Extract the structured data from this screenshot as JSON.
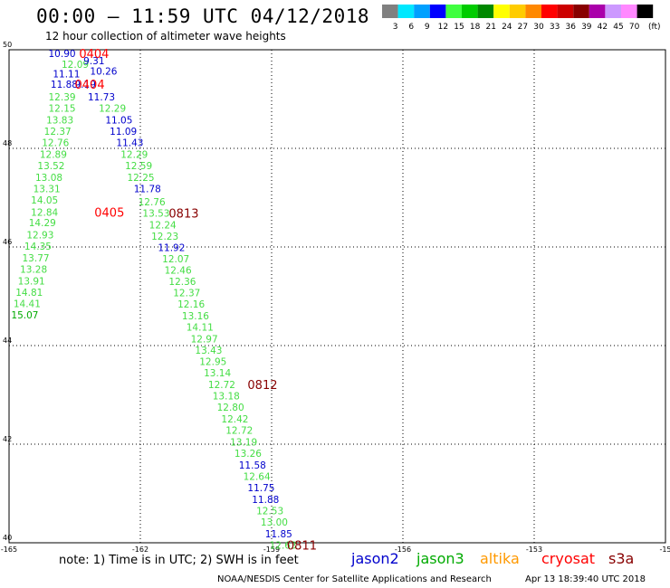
{
  "header": {
    "title": "00:00 – 11:59 UTC 04/12/2018",
    "subtitle": "12 hour collection of altimeter wave heights"
  },
  "colorbar": {
    "units": "(ft)",
    "entries": [
      {
        "label": "3",
        "color": "#808080"
      },
      {
        "label": "6",
        "color": "#00e8ff"
      },
      {
        "label": "9",
        "color": "#00a0ff"
      },
      {
        "label": "12",
        "color": "#0000ff"
      },
      {
        "label": "15",
        "color": "#40ff40"
      },
      {
        "label": "18",
        "color": "#00cc00"
      },
      {
        "label": "21",
        "color": "#008800"
      },
      {
        "label": "24",
        "color": "#ffff00"
      },
      {
        "label": "27",
        "color": "#ffcc00"
      },
      {
        "label": "30",
        "color": "#ff8800"
      },
      {
        "label": "33",
        "color": "#ff0000"
      },
      {
        "label": "36",
        "color": "#cc0000"
      },
      {
        "label": "39",
        "color": "#880000"
      },
      {
        "label": "42",
        "color": "#aa00aa"
      },
      {
        "label": "45",
        "color": "#cc99ff"
      },
      {
        "label": "70",
        "color": "#ff88ff"
      },
      {
        "label": "",
        "color": "#000000"
      }
    ]
  },
  "map": {
    "lon_ticks": [
      "-165",
      "-162",
      "-159",
      "-156",
      "-153",
      "-15"
    ],
    "lat_ticks": [
      "50",
      "48",
      "46",
      "44",
      "42",
      "40"
    ]
  },
  "observations": [
    {
      "text": "10.90",
      "color": "#0000cc",
      "x": -164.1,
      "y": 49.93
    },
    {
      "text": "12.09",
      "color": "#44dd44",
      "x": -163.8,
      "y": 49.71
    },
    {
      "text": "9.31",
      "color": "#0000cc",
      "x": -163.3,
      "y": 49.78
    },
    {
      "text": "10.26",
      "color": "#0000cc",
      "x": -163.15,
      "y": 49.57
    },
    {
      "text": "11.11",
      "color": "#0000cc",
      "x": -164.0,
      "y": 49.51
    },
    {
      "text": "11.88",
      "color": "#0000cc",
      "x": -164.05,
      "y": 49.3
    },
    {
      "text": "9.19",
      "color": "#0000cc",
      "x": -163.5,
      "y": 49.3
    },
    {
      "text": "12.39",
      "color": "#44dd44",
      "x": -164.1,
      "y": 49.05
    },
    {
      "text": "11.73",
      "color": "#0000cc",
      "x": -163.2,
      "y": 49.05
    },
    {
      "text": "12.15",
      "color": "#44dd44",
      "x": -164.1,
      "y": 48.82
    },
    {
      "text": "12.29",
      "color": "#44dd44",
      "x": -162.95,
      "y": 48.82
    },
    {
      "text": "13.83",
      "color": "#44dd44",
      "x": -164.15,
      "y": 48.58
    },
    {
      "text": "11.05",
      "color": "#0000cc",
      "x": -162.8,
      "y": 48.58
    },
    {
      "text": "12.37",
      "color": "#44dd44",
      "x": -164.2,
      "y": 48.35
    },
    {
      "text": "11.09",
      "color": "#0000cc",
      "x": -162.7,
      "y": 48.35
    },
    {
      "text": "12.76",
      "color": "#44dd44",
      "x": -164.25,
      "y": 48.12
    },
    {
      "text": "11.43",
      "color": "#0000cc",
      "x": -162.55,
      "y": 48.12
    },
    {
      "text": "12.89",
      "color": "#44dd44",
      "x": -164.3,
      "y": 47.88
    },
    {
      "text": "12.29",
      "color": "#44dd44",
      "x": -162.45,
      "y": 47.88
    },
    {
      "text": "13.52",
      "color": "#44dd44",
      "x": -164.35,
      "y": 47.65
    },
    {
      "text": "12.59",
      "color": "#44dd44",
      "x": -162.35,
      "y": 47.65
    },
    {
      "text": "13.08",
      "color": "#44dd44",
      "x": -164.4,
      "y": 47.41
    },
    {
      "text": "12.25",
      "color": "#44dd44",
      "x": -162.3,
      "y": 47.41
    },
    {
      "text": "13.31",
      "color": "#44dd44",
      "x": -164.45,
      "y": 47.18
    },
    {
      "text": "11.78",
      "color": "#0000cc",
      "x": -162.15,
      "y": 47.18
    },
    {
      "text": "14.05",
      "color": "#44dd44",
      "x": -164.5,
      "y": 46.95
    },
    {
      "text": "12.76",
      "color": "#44dd44",
      "x": -162.05,
      "y": 46.92
    },
    {
      "text": "12.84",
      "color": "#44dd44",
      "x": -164.5,
      "y": 46.71
    },
    {
      "text": "13.53",
      "color": "#44dd44",
      "x": -161.95,
      "y": 46.69
    },
    {
      "text": "14.29",
      "color": "#44dd44",
      "x": -164.55,
      "y": 46.5
    },
    {
      "text": "12.24",
      "color": "#44dd44",
      "x": -161.8,
      "y": 46.45
    },
    {
      "text": "12.93",
      "color": "#44dd44",
      "x": -164.6,
      "y": 46.25
    },
    {
      "text": "12.23",
      "color": "#44dd44",
      "x": -161.75,
      "y": 46.22
    },
    {
      "text": "14.35",
      "color": "#44dd44",
      "x": -164.65,
      "y": 46.02
    },
    {
      "text": "11.92",
      "color": "#0000cc",
      "x": -161.6,
      "y": 45.99
    },
    {
      "text": "13.77",
      "color": "#44dd44",
      "x": -164.7,
      "y": 45.78
    },
    {
      "text": "12.07",
      "color": "#44dd44",
      "x": -161.5,
      "y": 45.76
    },
    {
      "text": "13.28",
      "color": "#44dd44",
      "x": -164.75,
      "y": 45.55
    },
    {
      "text": "12.46",
      "color": "#44dd44",
      "x": -161.45,
      "y": 45.53
    },
    {
      "text": "13.91",
      "color": "#44dd44",
      "x": -164.8,
      "y": 45.31
    },
    {
      "text": "12.36",
      "color": "#44dd44",
      "x": -161.35,
      "y": 45.3
    },
    {
      "text": "14.81",
      "color": "#44dd44",
      "x": -164.85,
      "y": 45.08
    },
    {
      "text": "12.37",
      "color": "#44dd44",
      "x": -161.25,
      "y": 45.07
    },
    {
      "text": "14.41",
      "color": "#44dd44",
      "x": -164.9,
      "y": 44.85
    },
    {
      "text": "12.16",
      "color": "#44dd44",
      "x": -161.15,
      "y": 44.84
    },
    {
      "text": "15.07",
      "color": "#00aa00",
      "x": -164.95,
      "y": 44.62
    },
    {
      "text": "13.16",
      "color": "#44dd44",
      "x": -161.05,
      "y": 44.61
    },
    {
      "text": "14.11",
      "color": "#44dd44",
      "x": -160.95,
      "y": 44.38
    },
    {
      "text": "12.97",
      "color": "#44dd44",
      "x": -160.85,
      "y": 44.14
    },
    {
      "text": "13.43",
      "color": "#44dd44",
      "x": -160.75,
      "y": 43.91
    },
    {
      "text": "12.95",
      "color": "#44dd44",
      "x": -160.65,
      "y": 43.68
    },
    {
      "text": "13.14",
      "color": "#44dd44",
      "x": -160.55,
      "y": 43.45
    },
    {
      "text": "12.72",
      "color": "#44dd44",
      "x": -160.45,
      "y": 43.21
    },
    {
      "text": "13.18",
      "color": "#44dd44",
      "x": -160.35,
      "y": 42.98
    },
    {
      "text": "12.80",
      "color": "#44dd44",
      "x": -160.25,
      "y": 42.75
    },
    {
      "text": "12.42",
      "color": "#44dd44",
      "x": -160.15,
      "y": 42.51
    },
    {
      "text": "12.72",
      "color": "#44dd44",
      "x": -160.05,
      "y": 42.28
    },
    {
      "text": "13.19",
      "color": "#44dd44",
      "x": -159.95,
      "y": 42.05
    },
    {
      "text": "13.26",
      "color": "#44dd44",
      "x": -159.85,
      "y": 41.82
    },
    {
      "text": "11.58",
      "color": "#0000cc",
      "x": -159.75,
      "y": 41.58
    },
    {
      "text": "12.64",
      "color": "#44dd44",
      "x": -159.65,
      "y": 41.35
    },
    {
      "text": "11.75",
      "color": "#0000cc",
      "x": -159.55,
      "y": 41.12
    },
    {
      "text": "11.88",
      "color": "#0000cc",
      "x": -159.45,
      "y": 40.88
    },
    {
      "text": "12.53",
      "color": "#44dd44",
      "x": -159.35,
      "y": 40.65
    },
    {
      "text": "13.00",
      "color": "#44dd44",
      "x": -159.25,
      "y": 40.42
    },
    {
      "text": "11.85",
      "color": "#0000cc",
      "x": -159.15,
      "y": 40.18
    },
    {
      "text": "12.63",
      "color": "#44dd44",
      "x": -159.05,
      "y": 39.95
    }
  ],
  "track_labels": [
    {
      "text": "0404",
      "color": "#ff0000",
      "x": -163.4,
      "y": 49.93
    },
    {
      "text": "0404",
      "color": "#ff0000",
      "x": -163.5,
      "y": 49.3
    },
    {
      "text": "0405",
      "color": "#ff0000",
      "x": -163.05,
      "y": 46.71
    },
    {
      "text": "0813",
      "color": "#880000",
      "x": -161.35,
      "y": 46.69
    },
    {
      "text": "0812",
      "color": "#880000",
      "x": -159.55,
      "y": 43.21
    },
    {
      "text": "0811",
      "color": "#880000",
      "x": -158.65,
      "y": 39.95
    }
  ],
  "footer": {
    "note": "note: 1) Time is in UTC; 2) SWH is in feet",
    "legend": [
      {
        "name": "jason2",
        "color": "#0000cc"
      },
      {
        "name": "jason3",
        "color": "#00aa00"
      },
      {
        "name": "altika",
        "color": "#ff9900"
      },
      {
        "name": "cryosat",
        "color": "#ff0000"
      },
      {
        "name": "s3a",
        "color": "#880000"
      }
    ],
    "credit": "NOAA/NESDIS Center for Satellite Applications and Research",
    "timestamp": "Apr 13 18:39:40 UTC 2018"
  }
}
